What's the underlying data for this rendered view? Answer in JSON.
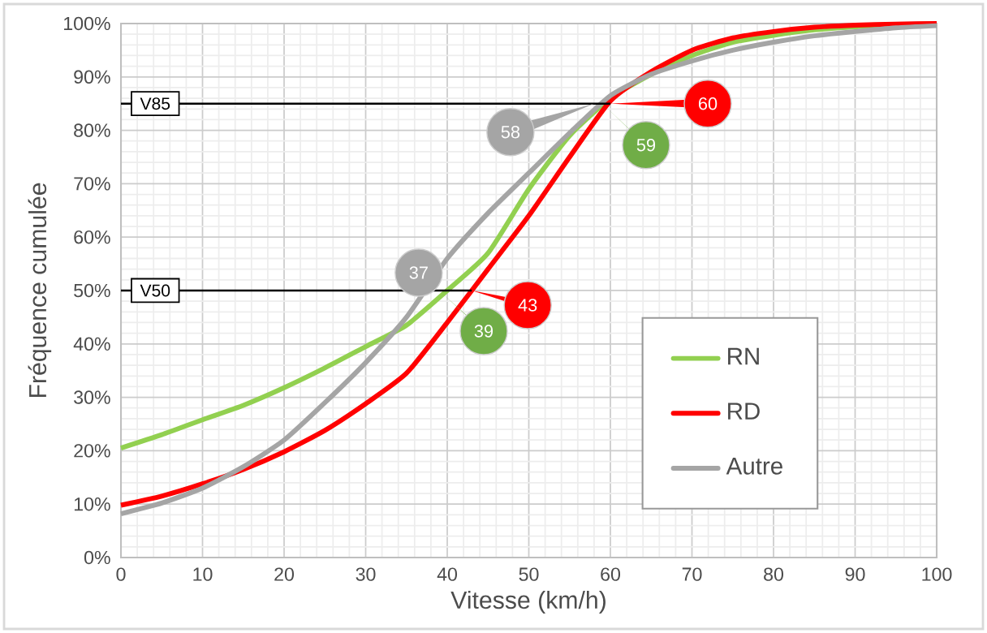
{
  "chart_data": {
    "type": "line",
    "xlabel": "Vitesse (km/h)",
    "ylabel": "Fréquence cumulée",
    "x": [
      0,
      5,
      10,
      15,
      20,
      25,
      30,
      35,
      40,
      45,
      50,
      55,
      60,
      65,
      70,
      75,
      80,
      85,
      90,
      95,
      100
    ],
    "series": [
      {
        "name": "RN",
        "color": "#92d050",
        "values": [
          20.5,
          23,
          25.8,
          28.5,
          31.8,
          35.5,
          39.5,
          43.5,
          50,
          57,
          69,
          79,
          86,
          90.5,
          94,
          96.5,
          97.8,
          98.8,
          99.4,
          99.7,
          100
        ]
      },
      {
        "name": "RD",
        "color": "#ff0000",
        "values": [
          9.8,
          11.5,
          13.8,
          16.5,
          19.8,
          23.8,
          28.8,
          34.5,
          44,
          54,
          64,
          75,
          85.5,
          91,
          95,
          97.3,
          98.5,
          99.3,
          99.7,
          99.9,
          100
        ]
      },
      {
        "name": "Autre",
        "color": "#a5a5a5",
        "values": [
          8.2,
          10.2,
          13,
          17,
          22,
          29,
          36.5,
          45,
          56,
          64.5,
          72,
          79.5,
          86.5,
          90.5,
          93,
          95,
          96.5,
          97.7,
          98.5,
          99.2,
          99.6
        ]
      }
    ],
    "xlim": [
      0,
      100
    ],
    "xticks": [
      0,
      10,
      20,
      30,
      40,
      50,
      60,
      70,
      80,
      90,
      100
    ],
    "ylim": [
      0,
      100
    ],
    "yticks": [
      {
        "value": 0,
        "label": "0%"
      },
      {
        "value": 10,
        "label": "10%"
      },
      {
        "value": 20,
        "label": "20%"
      },
      {
        "value": 30,
        "label": "30%"
      },
      {
        "value": 40,
        "label": "40%"
      },
      {
        "value": 50,
        "label": "50%"
      },
      {
        "value": 60,
        "label": "60%"
      },
      {
        "value": 70,
        "label": "70%"
      },
      {
        "value": 80,
        "label": "80%"
      },
      {
        "value": 90,
        "label": "90%"
      },
      {
        "value": 100,
        "label": "100%"
      }
    ],
    "ref_lines": [
      {
        "axis": "y",
        "value": 85,
        "label": "V85",
        "color": "#000000"
      },
      {
        "axis": "y",
        "value": 50,
        "label": "V50",
        "color": "#000000"
      }
    ],
    "annotations": [
      {
        "text": "58",
        "x": 58,
        "y": 85
      },
      {
        "text": "59",
        "x": 59,
        "y": 85
      },
      {
        "text": "60",
        "x": 60,
        "y": 85
      },
      {
        "text": "37",
        "x": 37,
        "y": 50
      },
      {
        "text": "39",
        "x": 39,
        "y": 50
      },
      {
        "text": "43",
        "x": 43,
        "y": 50
      }
    ],
    "grid": true,
    "legend": "bottom right",
    "marker": "none",
    "line_style": "solid"
  }
}
